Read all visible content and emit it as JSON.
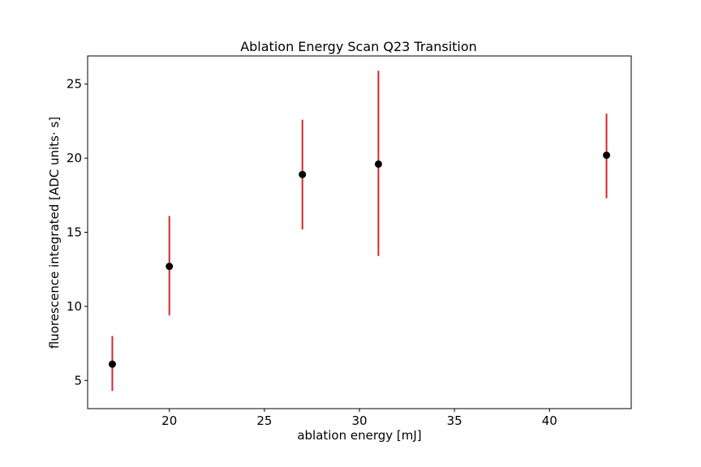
{
  "chart_data": {
    "type": "scatter",
    "title": "Ablation Energy Scan Q23 Transition",
    "xlabel": "ablation energy [mJ]",
    "ylabel": "fluorescence integrated [ADC units· s]",
    "xlim": [
      15.7,
      44.3
    ],
    "ylim": [
      3.1,
      26.9
    ],
    "xticks": [
      20,
      25,
      30,
      35,
      40
    ],
    "yticks": [
      5,
      10,
      15,
      20,
      25
    ],
    "grid": false,
    "points": [
      {
        "x": 17,
        "y": 6.1,
        "err_low": 4.3,
        "err_high": 8.0
      },
      {
        "x": 20,
        "y": 12.7,
        "err_low": 9.4,
        "err_high": 16.1
      },
      {
        "x": 27,
        "y": 18.9,
        "err_low": 15.2,
        "err_high": 22.6
      },
      {
        "x": 31,
        "y": 19.6,
        "err_low": 13.4,
        "err_high": 25.9
      },
      {
        "x": 43,
        "y": 20.2,
        "err_low": 17.3,
        "err_high": 23.0
      }
    ],
    "colors": {
      "marker": "#000000",
      "errorbar": "#d62728"
    }
  }
}
